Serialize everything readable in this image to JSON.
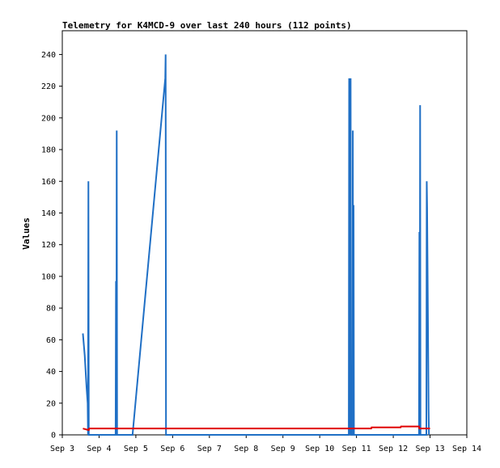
{
  "chart_data": {
    "type": "line",
    "title": "Telemetry for K4MCD-9 over last 240 hours (112 points)",
    "xlabel": "",
    "ylabel": "Values",
    "ylim": [
      0,
      255
    ],
    "yticks": [
      0,
      20,
      40,
      60,
      80,
      100,
      120,
      140,
      160,
      180,
      200,
      220,
      240
    ],
    "xlim": [
      3.0,
      14.0
    ],
    "x_unit": "day of September",
    "xticks": [
      {
        "x": 3,
        "label": "Sep 3"
      },
      {
        "x": 4,
        "label": "Sep 4"
      },
      {
        "x": 5,
        "label": "Sep 5"
      },
      {
        "x": 6,
        "label": "Sep 6"
      },
      {
        "x": 7,
        "label": "Sep 7"
      },
      {
        "x": 8,
        "label": "Sep 8"
      },
      {
        "x": 9,
        "label": "Sep 9"
      },
      {
        "x": 10,
        "label": "Sep 10"
      },
      {
        "x": 11,
        "label": "Sep 11"
      },
      {
        "x": 12,
        "label": "Sep 12"
      },
      {
        "x": 13,
        "label": "Sep 13"
      },
      {
        "x": 14,
        "label": "Sep 14"
      }
    ],
    "grid": false,
    "legend": "none",
    "series": [
      {
        "color": "#1f6fc5",
        "points": [
          [
            3.56,
            64
          ],
          [
            3.61,
            50
          ],
          [
            3.66,
            30
          ],
          [
            3.69,
            20
          ],
          [
            3.7,
            0
          ],
          [
            3.71,
            160
          ],
          [
            3.72,
            0
          ],
          [
            4.45,
            0
          ],
          [
            4.46,
            97
          ],
          [
            4.47,
            0
          ],
          [
            4.48,
            192
          ],
          [
            4.49,
            0
          ],
          [
            4.91,
            0
          ],
          [
            5.8,
            225
          ],
          [
            5.81,
            240
          ],
          [
            5.82,
            0
          ],
          [
            10.79,
            0
          ],
          [
            10.8,
            225
          ],
          [
            10.81,
            0
          ],
          [
            10.82,
            192
          ],
          [
            10.83,
            0
          ],
          [
            10.84,
            225
          ],
          [
            10.85,
            0
          ],
          [
            10.89,
            0
          ],
          [
            10.9,
            192
          ],
          [
            10.91,
            0
          ],
          [
            10.92,
            145
          ],
          [
            10.93,
            0
          ],
          [
            12.7,
            0
          ],
          [
            12.71,
            128
          ],
          [
            12.72,
            0
          ],
          [
            12.73,
            208
          ],
          [
            12.74,
            0
          ],
          [
            12.9,
            0
          ],
          [
            12.91,
            160
          ],
          [
            12.92,
            143
          ],
          [
            12.93,
            112
          ],
          [
            12.94,
            80
          ],
          [
            12.95,
            48
          ],
          [
            12.96,
            16
          ],
          [
            12.97,
            0
          ]
        ]
      },
      {
        "color": "#e00000",
        "points": [
          [
            3.56,
            4
          ],
          [
            3.72,
            3
          ],
          [
            3.73,
            4
          ],
          [
            10.75,
            4
          ],
          [
            11.4,
            4
          ],
          [
            11.41,
            4.7
          ],
          [
            12.2,
            4.7
          ],
          [
            12.21,
            5.3
          ],
          [
            12.7,
            5.3
          ],
          [
            12.71,
            4
          ],
          [
            13.0,
            4
          ]
        ]
      }
    ]
  }
}
